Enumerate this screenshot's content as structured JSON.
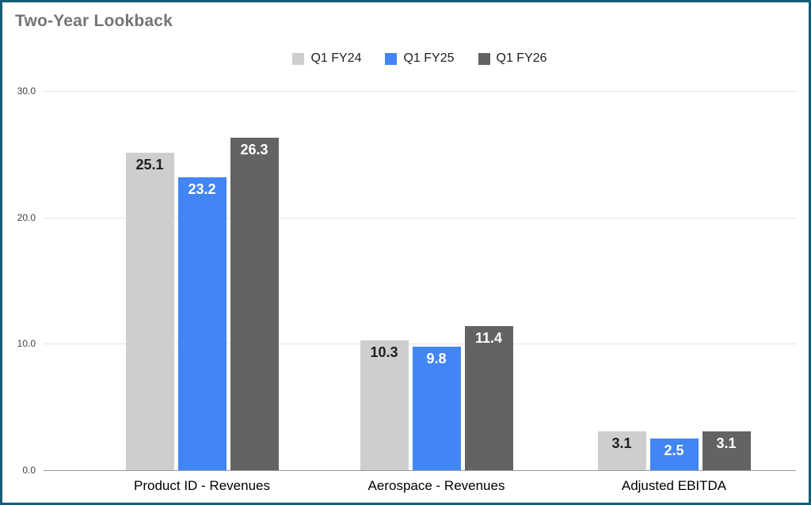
{
  "chart_data": {
    "type": "bar",
    "title": "Two-Year Lookback",
    "categories": [
      "Product ID - Revenues",
      "Aerospace - Revenues",
      "Adjusted EBITDA"
    ],
    "series": [
      {
        "name": "Q1 FY24",
        "color": "#cecece",
        "label_color": "#1f1f1f",
        "values": [
          25.1,
          10.3,
          3.1
        ]
      },
      {
        "name": "Q1 FY25",
        "color": "#4285f4",
        "label_color": "#ffffff",
        "values": [
          23.2,
          9.8,
          2.5
        ]
      },
      {
        "name": "Q1 FY26",
        "color": "#636363",
        "label_color": "#ffffff",
        "values": [
          26.3,
          11.4,
          3.1
        ]
      }
    ],
    "ylim": [
      0,
      30
    ],
    "yticks": [
      {
        "value": 0,
        "label": "0.0"
      },
      {
        "value": 10,
        "label": "10.0"
      },
      {
        "value": 20,
        "label": "20.0"
      },
      {
        "value": 30,
        "label": "30.0"
      }
    ],
    "grid": true,
    "legend_position": "top-center",
    "colors": {
      "frame_border": "#175d76",
      "title_text": "#757575",
      "gridline": "#e3e3e3",
      "baseline": "#9a9a9a"
    }
  }
}
